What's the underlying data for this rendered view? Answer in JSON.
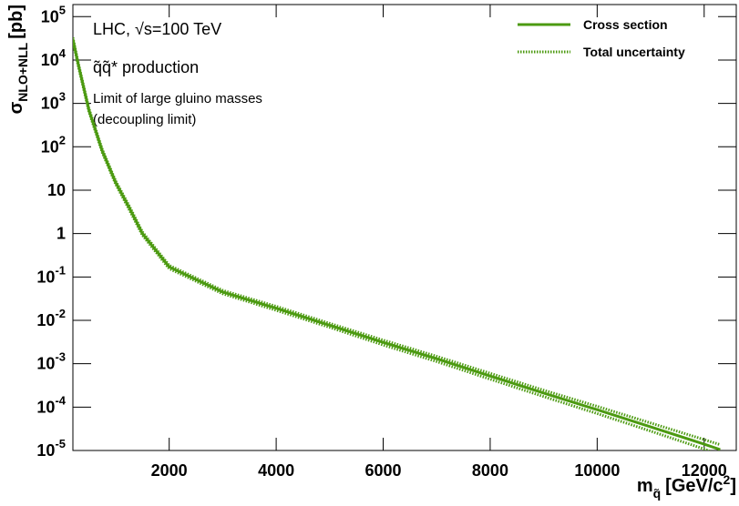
{
  "chart_data": {
    "type": "line",
    "annotations": [
      "LHC,  √s=100 TeV",
      "q̃q̃* production",
      "Limit of large gluino masses",
      "(decoupling limit)"
    ],
    "ylabel": {
      "symbol": "σ",
      "sub": "NLO+NLL",
      "unit": "[pb]"
    },
    "xlabel": {
      "symbol": "m",
      "sub": "q̃",
      "unit": "[GeV/c",
      "sup": "2",
      "close": "]"
    },
    "x": [
      200,
      300,
      500,
      750,
      1000,
      1250,
      1500,
      2000,
      3000,
      4000,
      5000,
      6000,
      7000,
      8000,
      9000,
      10000,
      11000,
      12000,
      12300
    ],
    "series": [
      {
        "name": "Cross section",
        "color": "#4c9a11",
        "values": [
          30000,
          8000,
          700,
          80,
          15,
          4,
          1.0,
          0.17,
          0.045,
          0.019,
          0.0077,
          0.0031,
          0.0013,
          0.00052,
          0.00021,
          8.7e-05,
          3.5e-05,
          1.4e-05,
          1.05e-05
        ]
      }
    ],
    "uncertainty": {
      "name": "Total uncertainty",
      "color": "#4c9a11",
      "upper": [
        33000,
        8700,
        760,
        87,
        16.3,
        4.4,
        1.09,
        0.185,
        0.049,
        0.021,
        0.0085,
        0.0035,
        0.00148,
        0.0006,
        0.000245,
        0.000104,
        4.3e-05,
        1.78e-05,
        1.36e-05
      ],
      "lower": [
        27000,
        7300,
        640,
        73,
        13.7,
        3.6,
        0.91,
        0.155,
        0.041,
        0.017,
        0.0069,
        0.0027,
        0.00112,
        0.00044,
        0.000175,
        7.1e-05,
        2.8e-05,
        1.08e-05,
        7.8e-06
      ]
    },
    "xlim": [
      200,
      12600
    ],
    "ylim": [
      1e-05,
      190000
    ],
    "log_y": true,
    "legend": "top-right",
    "xticks": [
      2000,
      4000,
      6000,
      8000,
      10000,
      12000
    ],
    "yticks": [
      {
        "value": 100000,
        "label": "10",
        "sup": "5"
      },
      {
        "value": 10000,
        "label": "10",
        "sup": "4"
      },
      {
        "value": 1000,
        "label": "10",
        "sup": "3"
      },
      {
        "value": 100,
        "label": "10",
        "sup": "2"
      },
      10,
      1,
      {
        "value": 0.1,
        "label": "10",
        "sup": "-1"
      },
      {
        "value": 0.01,
        "label": "10",
        "sup": "-2"
      },
      {
        "value": 0.001,
        "label": "10",
        "sup": "-3"
      },
      {
        "value": 0.0001,
        "label": "10",
        "sup": "-4"
      },
      {
        "value": 1e-05,
        "label": "10",
        "sup": "-5"
      }
    ]
  }
}
